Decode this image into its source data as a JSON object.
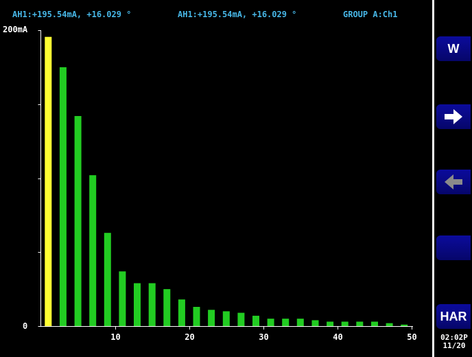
{
  "header": {
    "readout_1": "AH1:+195.54mA, +16.029 °",
    "readout_2": "AH1:+195.54mA, +16.029 °",
    "group": "GROUP A:Ch1"
  },
  "softkeys": [
    {
      "label": "W"
    },
    {
      "label": "",
      "icon": "arrow-right-icon"
    },
    {
      "label": "",
      "icon": "arrow-left-icon"
    },
    {
      "label": ""
    },
    {
      "label": "HAR"
    }
  ],
  "clock": {
    "time": "02:02P",
    "date": "11/20"
  },
  "colors": {
    "fundamental": "#ffff33",
    "harmonic": "#22cc22",
    "header_text": "#47b6e6",
    "softkey": "#0a0a8a"
  },
  "chart_data": {
    "type": "bar",
    "ylabel_top": "200mA",
    "ylabel_bottom": "0",
    "ylim": [
      0,
      200
    ],
    "xlim": [
      0,
      50
    ],
    "xticks": [
      10,
      20,
      30,
      40,
      50
    ],
    "x": [
      1,
      3,
      5,
      7,
      9,
      11,
      13,
      15,
      17,
      19,
      21,
      23,
      25,
      27,
      29,
      31,
      33,
      35,
      37,
      39,
      41,
      43,
      45,
      47,
      49
    ],
    "values": [
      195.5,
      175,
      142,
      102,
      63,
      37,
      29,
      29,
      25,
      18,
      13,
      11,
      10,
      9,
      7,
      5,
      5,
      5,
      4,
      3,
      3,
      3,
      3,
      2,
      1
    ],
    "highlight_index": 0
  }
}
